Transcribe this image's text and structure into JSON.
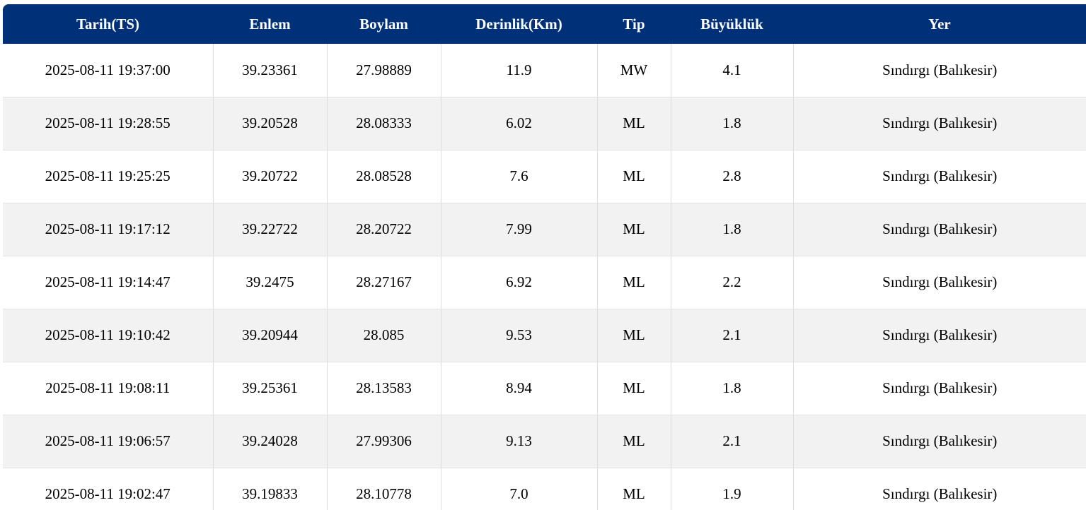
{
  "table": {
    "headers": [
      "Tarih(TS)",
      "Enlem",
      "Boylam",
      "Derinlik(Km)",
      "Tip",
      "Büyüklük",
      "Yer"
    ],
    "rows": [
      [
        "2025-08-11 19:37:00",
        "39.23361",
        "27.98889",
        "11.9",
        "MW",
        "4.1",
        "Sındırgı (Balıkesir)"
      ],
      [
        "2025-08-11 19:28:55",
        "39.20528",
        "28.08333",
        "6.02",
        "ML",
        "1.8",
        "Sındırgı (Balıkesir)"
      ],
      [
        "2025-08-11 19:25:25",
        "39.20722",
        "28.08528",
        "7.6",
        "ML",
        "2.8",
        "Sındırgı (Balıkesir)"
      ],
      [
        "2025-08-11 19:17:12",
        "39.22722",
        "28.20722",
        "7.99",
        "ML",
        "1.8",
        "Sındırgı (Balıkesir)"
      ],
      [
        "2025-08-11 19:14:47",
        "39.2475",
        "28.27167",
        "6.92",
        "ML",
        "2.2",
        "Sındırgı (Balıkesir)"
      ],
      [
        "2025-08-11 19:10:42",
        "39.20944",
        "28.085",
        "9.53",
        "ML",
        "2.1",
        "Sındırgı (Balıkesir)"
      ],
      [
        "2025-08-11 19:08:11",
        "39.25361",
        "28.13583",
        "8.94",
        "ML",
        "1.8",
        "Sındırgı (Balıkesir)"
      ],
      [
        "2025-08-11 19:06:57",
        "39.24028",
        "27.99306",
        "9.13",
        "ML",
        "2.1",
        "Sındırgı (Balıkesir)"
      ],
      [
        "2025-08-11 19:02:47",
        "39.19833",
        "28.10778",
        "7.0",
        "ML",
        "1.9",
        "Sındırgı (Balıkesir)"
      ]
    ]
  },
  "colors": {
    "header_bg": "#003078",
    "header_text": "#ffffff",
    "row_alt_bg": "#f2f2f2"
  }
}
